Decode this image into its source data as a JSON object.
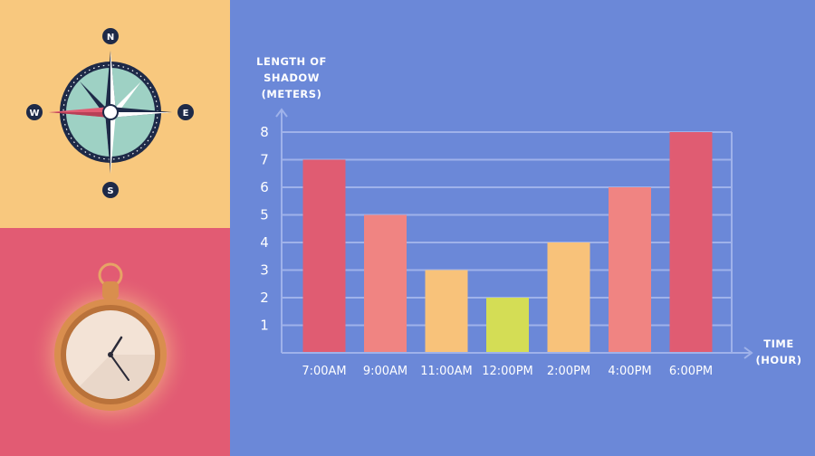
{
  "colors": {
    "background": "#6b88d8",
    "compass_panel": "#f8c87e",
    "clock_panel": "#e25b73",
    "grid": "#9fb2ea",
    "bar_dark_pink": "#e05c72",
    "bar_light_pink": "#f08482",
    "bar_peach": "#f8c27a",
    "bar_lime": "#d4dd55"
  },
  "compass": {
    "north": "N",
    "south": "S",
    "east": "E",
    "west": "W"
  },
  "chart_data": {
    "type": "bar",
    "ylabel_lines": [
      "LENGTH OF",
      "SHADOW",
      "(METERS)"
    ],
    "xlabel_lines": [
      "TIME",
      "(HOUR)"
    ],
    "categories": [
      "7:00AM",
      "9:00AM",
      "11:00AM",
      "12:00PM",
      "2:00PM",
      "4:00PM",
      "6:00PM"
    ],
    "values": [
      7,
      5,
      3,
      2,
      4,
      6,
      8
    ],
    "bar_colors": [
      "#e05c72",
      "#f08482",
      "#f8c27a",
      "#d4dd55",
      "#f8c27a",
      "#f08482",
      "#e05c72"
    ],
    "ylim": [
      0,
      8
    ],
    "yticks": [
      1,
      2,
      3,
      4,
      5,
      6,
      7,
      8
    ],
    "grid": true
  }
}
